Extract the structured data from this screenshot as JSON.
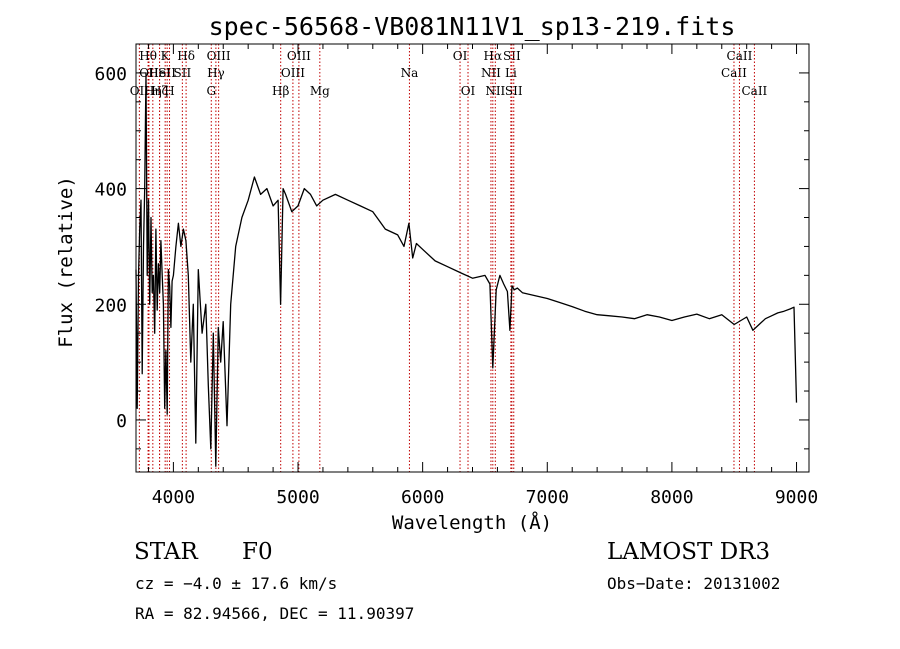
{
  "chart_data": {
    "type": "line",
    "title": "spec-56568-VB081N11V1_sp13-219.fits",
    "xlabel": "Wavelength (Å)",
    "ylabel": "Flux (relative)",
    "xlim": [
      3700,
      9100
    ],
    "ylim": [
      -90,
      650
    ],
    "x_ticks": [
      4000,
      5000,
      6000,
      7000,
      8000,
      9000
    ],
    "x_tick_labels": [
      "4000",
      "5000",
      "6000",
      "7000",
      "8000",
      "9000"
    ],
    "y_ticks": [
      0,
      200,
      400,
      600
    ],
    "y_tick_labels": [
      "0",
      "200",
      "400",
      "600"
    ],
    "line_color": "#000000",
    "marker_color": "#c00000",
    "spectrum": {
      "x": [
        3700,
        3710,
        3720,
        3730,
        3740,
        3750,
        3760,
        3770,
        3780,
        3790,
        3800,
        3810,
        3820,
        3830,
        3840,
        3850,
        3860,
        3870,
        3880,
        3890,
        3900,
        3910,
        3920,
        3930,
        3940,
        3950,
        3960,
        3970,
        3980,
        3990,
        4000,
        4020,
        4040,
        4060,
        4080,
        4100,
        4120,
        4140,
        4160,
        4180,
        4200,
        4230,
        4260,
        4280,
        4300,
        4320,
        4340,
        4360,
        4380,
        4400,
        4430,
        4460,
        4500,
        4550,
        4600,
        4650,
        4700,
        4750,
        4800,
        4840,
        4860,
        4880,
        4900,
        4950,
        5000,
        5050,
        5100,
        5150,
        5200,
        5300,
        5400,
        5500,
        5600,
        5700,
        5800,
        5850,
        5890,
        5920,
        5950,
        6000,
        6100,
        6200,
        6300,
        6400,
        6500,
        6540,
        6563,
        6590,
        6620,
        6650,
        6680,
        6700,
        6717,
        6735,
        6760,
        6800,
        6900,
        7000,
        7100,
        7200,
        7300,
        7400,
        7500,
        7600,
        7700,
        7800,
        7900,
        8000,
        8100,
        8200,
        8300,
        8400,
        8500,
        8600,
        8650,
        8700,
        8750,
        8800,
        8850,
        8900,
        8950,
        8980,
        9000
      ],
      "y": [
        260,
        20,
        250,
        330,
        380,
        80,
        300,
        400,
        600,
        250,
        380,
        200,
        350,
        220,
        250,
        150,
        330,
        190,
        270,
        220,
        310,
        250,
        200,
        20,
        120,
        10,
        260,
        230,
        160,
        240,
        250,
        300,
        340,
        300,
        330,
        310,
        250,
        100,
        200,
        -40,
        260,
        150,
        200,
        60,
        -50,
        150,
        -80,
        160,
        100,
        170,
        -10,
        200,
        300,
        350,
        380,
        420,
        390,
        400,
        370,
        380,
        200,
        400,
        390,
        360,
        370,
        400,
        390,
        370,
        380,
        390,
        380,
        370,
        360,
        330,
        320,
        300,
        340,
        280,
        305,
        295,
        275,
        265,
        255,
        245,
        250,
        235,
        90,
        225,
        250,
        235,
        222,
        155,
        232,
        225,
        228,
        220,
        215,
        210,
        203,
        196,
        188,
        182,
        180,
        178,
        175,
        182,
        178,
        172,
        178,
        183,
        175,
        182,
        165,
        178,
        155,
        165,
        175,
        180,
        185,
        188,
        192,
        195,
        30
      ]
    },
    "spectral_lines": [
      {
        "label": "OII",
        "wavelength": 3727,
        "row": 2
      },
      {
        "label": "Hθ",
        "wavelength": 3797,
        "row": 0
      },
      {
        "label": "OII",
        "wavelength": 3804,
        "row": 1
      },
      {
        "label": "Hη",
        "wavelength": 3835,
        "row": 2
      },
      {
        "label": "Hζ",
        "wavelength": 3889,
        "row": 2
      },
      {
        "label": "HeI",
        "wavelength": 3889,
        "row": 1
      },
      {
        "label": "K",
        "wavelength": 3934,
        "row": 0
      },
      {
        "label": "SII",
        "wavelength": 3950,
        "row": 1
      },
      {
        "label": "H",
        "wavelength": 3969,
        "row": 2
      },
      {
        "label": "Hδ",
        "wavelength": 4102,
        "row": 0
      },
      {
        "label": "SII",
        "wavelength": 4072,
        "row": 1
      },
      {
        "label": "G",
        "wavelength": 4304,
        "row": 2
      },
      {
        "label": "OIII",
        "wavelength": 4363,
        "row": 0
      },
      {
        "label": "Hγ",
        "wavelength": 4341,
        "row": 1
      },
      {
        "label": "Hβ",
        "wavelength": 4861,
        "row": 2
      },
      {
        "label": "OIII",
        "wavelength": 4959,
        "row": 1
      },
      {
        "label": "OIII",
        "wavelength": 5007,
        "row": 0
      },
      {
        "label": "Mg",
        "wavelength": 5175,
        "row": 2
      },
      {
        "label": "Na",
        "wavelength": 5894,
        "row": 1
      },
      {
        "label": "OI",
        "wavelength": 6300,
        "row": 0
      },
      {
        "label": "OI",
        "wavelength": 6364,
        "row": 2
      },
      {
        "label": "NII",
        "wavelength": 6548,
        "row": 1
      },
      {
        "label": "Hα",
        "wavelength": 6563,
        "row": 0
      },
      {
        "label": "NII",
        "wavelength": 6583,
        "row": 2
      },
      {
        "label": "SII",
        "wavelength": 6716,
        "row": 0
      },
      {
        "label": "Li",
        "wavelength": 6708,
        "row": 1
      },
      {
        "label": "SII",
        "wavelength": 6731,
        "row": 2
      },
      {
        "label": "CaII",
        "wavelength": 8498,
        "row": 1
      },
      {
        "label": "CaII",
        "wavelength": 8542,
        "row": 0
      },
      {
        "label": "CaII",
        "wavelength": 8662,
        "row": 2
      }
    ]
  },
  "info": {
    "object_class": "STAR",
    "subclass": "F0",
    "survey": "LAMOST DR3",
    "redshift": "cz = −4.0 ± 17.6 km/s",
    "obs_date": "Obs−Date: 20131002",
    "coordinates": "RA =  82.94566, DEC =  11.90397"
  }
}
